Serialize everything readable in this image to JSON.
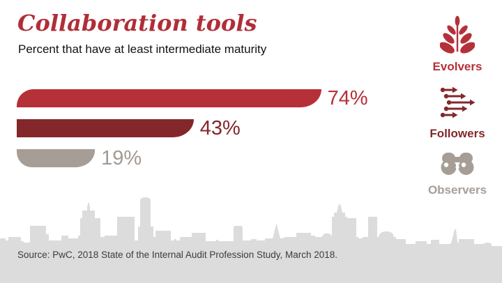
{
  "header": {
    "title": "Collaboration tools",
    "subtitle": "Percent that have at least intermediate maturity"
  },
  "chart_data": {
    "type": "bar",
    "orientation": "horizontal",
    "title": "Collaboration tools",
    "subtitle": "Percent that have at least intermediate maturity",
    "categories": [
      "Evolvers",
      "Followers",
      "Observers"
    ],
    "values": [
      74,
      43,
      19
    ],
    "labels": [
      "74%",
      "43%",
      "19%"
    ],
    "unit": "%",
    "xlim": [
      0,
      100
    ],
    "grid": false,
    "bar_colors": [
      "#b63037",
      "#84272b",
      "#a69e96"
    ],
    "legend_position": "right"
  },
  "legend": {
    "items": [
      {
        "label": "Evolvers",
        "icon": "plant-icon",
        "color": "#b5313a"
      },
      {
        "label": "Followers",
        "icon": "arrows-icon",
        "color": "#82282b"
      },
      {
        "label": "Observers",
        "icon": "binoculars-icon",
        "color": "#a69e96"
      }
    ]
  },
  "footer": {
    "source": "Source: PwC, 2018 State of the Internal Audit Profession Study, March 2018."
  },
  "colors": {
    "accent_red": "#b63037",
    "dark_red": "#84272b",
    "taupe_gray": "#a69e96",
    "title_red": "#b02e38",
    "skyline_gray": "#dcdcdc",
    "source_text": "#3c3c3c"
  }
}
